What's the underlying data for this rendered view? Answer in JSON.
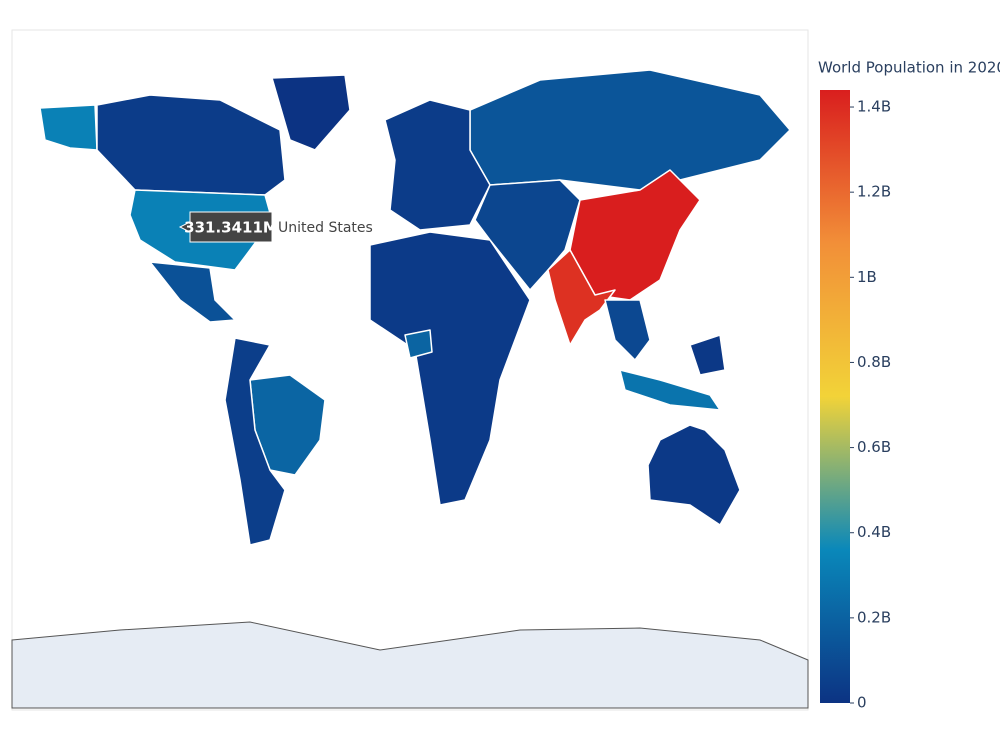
{
  "chart_data": {
    "type": "choropleth",
    "colorbar_title": "World Population in 2020",
    "zlim": [
      0,
      1440000000
    ],
    "zticks": [
      0,
      {
        "value": 200000000,
        "label": "0.2B"
      },
      {
        "value": 400000000,
        "label": "0.4B"
      },
      {
        "value": 600000000,
        "label": "0.6B"
      },
      {
        "value": 800000000,
        "label": "0.8B"
      },
      {
        "value": 1000000000,
        "label": "1B"
      },
      {
        "value": 1200000000,
        "label": "1.2B"
      },
      {
        "value": 1400000000,
        "label": "1.4B"
      }
    ],
    "colorscale": [
      [
        0,
        "#0c3383"
      ],
      [
        0.25,
        "#0a88ba"
      ],
      [
        0.5,
        "#f2d338"
      ],
      [
        0.75,
        "#f28f38"
      ],
      [
        1,
        "#d91e1e"
      ]
    ],
    "values": [
      331341100,
      37742154,
      56772,
      128932753,
      212559417,
      45000000,
      145934462,
      40000000,
      30000000,
      206139589,
      80000000,
      1439323776,
      1380004385,
      90000000,
      273523615,
      25499884,
      20000000
    ],
    "hover": {
      "name": "United States",
      "value": 331341100,
      "value_label": "331.3411M"
    }
  }
}
